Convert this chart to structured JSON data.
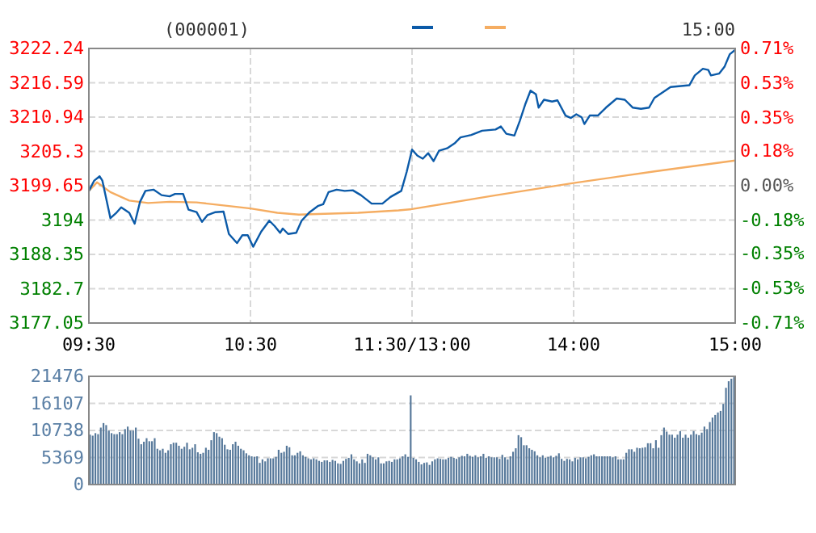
{
  "chart_data": [
    {
      "type": "line",
      "title": "(000001)",
      "annotations": [
        "15:00"
      ],
      "grid": true,
      "line_style": "solid",
      "categories": [
        "09:30",
        null,
        null,
        null,
        null,
        null,
        null,
        null,
        null,
        null,
        null,
        null,
        null,
        null,
        null,
        null,
        null,
        null,
        null,
        null,
        null,
        null,
        null,
        null,
        null,
        null,
        null,
        null,
        null,
        null,
        null,
        null,
        null,
        null,
        null,
        null,
        null,
        null,
        null,
        null,
        null,
        null,
        null,
        null,
        null,
        null,
        null,
        null,
        null,
        null,
        null,
        null,
        null,
        null,
        null,
        null,
        null,
        null,
        null,
        null,
        "10:30",
        null,
        null,
        null,
        null,
        null,
        null,
        null,
        null,
        null,
        null,
        null,
        null,
        null,
        null,
        null,
        null,
        null,
        null,
        null,
        null,
        null,
        null,
        null,
        null,
        null,
        null,
        null,
        null,
        null,
        null,
        null,
        null,
        null,
        null,
        null,
        null,
        null,
        null,
        null,
        null,
        null,
        null,
        null,
        null,
        null,
        null,
        null,
        null,
        null,
        null,
        null,
        null,
        null,
        null,
        null,
        null,
        null,
        null,
        null,
        "11:30/13:00",
        null,
        null,
        null,
        null,
        null,
        null,
        null,
        null,
        null,
        null,
        null,
        null,
        null,
        null,
        null,
        null,
        null,
        null,
        null,
        null,
        null,
        null,
        null,
        null,
        null,
        null,
        null,
        null,
        null,
        null,
        null,
        null,
        null,
        null,
        null,
        null,
        null,
        null,
        null,
        null,
        null,
        null,
        null,
        null,
        null,
        null,
        null,
        null,
        null,
        null,
        null,
        null,
        null,
        null,
        null,
        null,
        null,
        null,
        null,
        "14:00",
        null,
        null,
        null,
        null,
        null,
        null,
        null,
        null,
        null,
        null,
        null,
        null,
        null,
        null,
        null,
        null,
        null,
        null,
        null,
        null,
        null,
        null,
        null,
        null,
        null,
        null,
        null,
        null,
        null,
        null,
        null,
        null,
        null,
        null,
        null,
        null,
        null,
        null,
        null,
        null,
        null,
        null,
        null,
        null,
        null,
        null,
        null,
        null,
        null,
        null,
        null,
        null,
        null,
        null,
        null,
        null,
        null,
        null,
        null,
        "15:00"
      ],
      "ylim": [
        3177.05,
        3222.24
      ],
      "yticks": [
        3177.05,
        3182.7,
        3188.35,
        3194.0,
        3199.65,
        3205.3,
        3210.94,
        3216.59,
        3222.24
      ],
      "y2lim": [
        -0.71,
        0.71
      ],
      "y2ticks": [
        {
          "value": -0.71,
          "label": "-0.71%"
        },
        {
          "value": -0.53,
          "label": "-0.53%"
        },
        {
          "value": -0.35,
          "label": "-0.35%"
        },
        {
          "value": -0.18,
          "label": "-0.18%"
        },
        {
          "value": 0,
          "label": "0.00%"
        },
        {
          "value": 0.18,
          "label": "0.18%"
        },
        {
          "value": 0.35,
          "label": "0.35%"
        },
        {
          "value": 0.53,
          "label": "0.53%"
        },
        {
          "value": 0.71,
          "label": "0.71%"
        }
      ],
      "series": [
        {
          "color": "#0b5aa8",
          "values": [
            3198.8,
            null,
            3200.5,
            null,
            3201.2,
            3200.5,
            null,
            null,
            3194.3,
            null,
            3195.1,
            null,
            3196.1,
            null,
            null,
            3195.2,
            null,
            3193.4,
            null,
            3197.0,
            null,
            3198.8,
            null,
            null,
            3199.0,
            null,
            null,
            3198.1,
            null,
            null,
            3197.9,
            null,
            3198.3,
            null,
            null,
            3198.3,
            null,
            3195.7,
            null,
            null,
            3195.3,
            null,
            3193.7,
            null,
            3194.8,
            null,
            null,
            3195.3,
            null,
            null,
            3195.4,
            null,
            3191.7,
            null,
            null,
            3190.2,
            null,
            3191.5,
            null,
            3191.5,
            null,
            3189.6,
            null,
            null,
            3192.1,
            null,
            null,
            3193.9,
            null,
            3193.0,
            null,
            3191.9,
            3192.6,
            null,
            3191.7,
            null,
            null,
            3191.9,
            null,
            3193.9,
            null,
            null,
            3195.3,
            null,
            null,
            3196.3,
            null,
            3196.6,
            null,
            3198.6,
            null,
            null,
            3199.0,
            null,
            null,
            3198.8,
            null,
            null,
            3198.9,
            null,
            null,
            3198.1,
            null,
            null,
            null,
            3196.7,
            null,
            null,
            null,
            3196.7,
            null,
            null,
            3197.8,
            null,
            null,
            null,
            3198.8,
            null,
            3201.9,
            null,
            3205.6,
            null,
            3204.6,
            null,
            3204.1,
            null,
            3205.0,
            null,
            3203.7,
            null,
            3205.4,
            null,
            null,
            3205.8,
            null,
            null,
            3206.7,
            null,
            3207.6,
            null,
            null,
            null,
            3208.0,
            null,
            null,
            null,
            3208.7,
            null,
            null,
            null,
            null,
            3208.9,
            null,
            3209.4,
            null,
            3208.2,
            null,
            null,
            3207.9,
            null,
            3210.3,
            null,
            3213.0,
            null,
            3215.3,
            null,
            3214.7,
            3212.5,
            null,
            3213.8,
            null,
            null,
            3213.5,
            null,
            3213.7,
            null,
            null,
            3211.2,
            null,
            3210.8,
            null,
            3211.4,
            null,
            3210.9,
            3209.8,
            null,
            3211.2,
            null,
            null,
            3211.2,
            null,
            null,
            3212.5,
            null,
            null,
            null,
            3214.0,
            null,
            null,
            3213.8,
            null,
            null,
            3212.5,
            null,
            null,
            3212.3,
            null,
            null,
            3212.5,
            null,
            3214.1,
            null,
            null,
            3215.0,
            null,
            null,
            3215.9,
            null,
            null,
            null,
            null,
            null,
            null,
            3216.2,
            null,
            3217.8,
            null,
            null,
            3218.9,
            null,
            3218.7,
            3217.8,
            null,
            null,
            3218.1,
            null,
            3219.2,
            null,
            3221.3,
            null,
            3222.0
          ]
        },
        {
          "color": "#f5ad62",
          "values": [
            3198.8,
            null,
            null,
            3200.2,
            null,
            null,
            null,
            null,
            3198.6,
            null,
            null,
            null,
            null,
            null,
            null,
            3197.2,
            null,
            null,
            null,
            null,
            null,
            null,
            3196.8,
            null,
            null,
            null,
            null,
            null,
            null,
            null,
            3197.0,
            null,
            null,
            null,
            null,
            null,
            null,
            null,
            null,
            null,
            3196.9,
            null,
            null,
            null,
            null,
            null,
            null,
            null,
            null,
            null,
            3196.4,
            null,
            null,
            null,
            null,
            null,
            null,
            null,
            null,
            null,
            3195.9,
            null,
            null,
            null,
            null,
            null,
            null,
            null,
            null,
            null,
            3195.2,
            null,
            null,
            null,
            null,
            null,
            null,
            null,
            3194.9,
            null,
            null,
            null,
            null,
            null,
            null,
            3195.0,
            null,
            null,
            null,
            null,
            null,
            null,
            null,
            null,
            null,
            null,
            null,
            null,
            null,
            null,
            3195.2,
            null,
            null,
            null,
            null,
            null,
            null,
            null,
            null,
            null,
            null,
            null,
            null,
            null,
            null,
            3195.6,
            null,
            null,
            null,
            null,
            3195.8,
            null,
            null,
            null,
            null,
            null,
            null,
            null,
            null,
            null,
            null,
            null,
            null,
            null,
            null,
            null,
            null,
            null,
            null,
            null,
            null,
            null,
            null,
            null,
            null,
            null,
            null,
            null,
            null,
            null,
            3198.0,
            null,
            null,
            null,
            null,
            null,
            null,
            null,
            null,
            null,
            null,
            null,
            null,
            null,
            null,
            null,
            null,
            null,
            null,
            null,
            null,
            null,
            null,
            null,
            null,
            null,
            null,
            null,
            null,
            null,
            3200.1,
            null,
            null,
            null,
            null,
            null,
            null,
            null,
            null,
            null,
            null,
            null,
            null,
            null,
            null,
            null,
            null,
            null,
            null,
            null,
            null,
            null,
            null,
            null,
            null,
            null,
            null,
            null,
            null,
            null,
            3202.0,
            null,
            null,
            null,
            null,
            null,
            null,
            null,
            null,
            null,
            null,
            null,
            null,
            null,
            null,
            null,
            null,
            null,
            null,
            null,
            null,
            null,
            null,
            null,
            null,
            null,
            null,
            null,
            null,
            null,
            3203.8
          ]
        }
      ]
    },
    {
      "type": "bar",
      "grid": "y",
      "tick_labels": "y",
      "categories": [
        null,
        null,
        null,
        null,
        null,
        null,
        null,
        null,
        null,
        null,
        null,
        null,
        null,
        null,
        null,
        null,
        null,
        null,
        null,
        null,
        null,
        null,
        null,
        null,
        null,
        null,
        null,
        null,
        null,
        null,
        null,
        null,
        null,
        null,
        null,
        null,
        null,
        null,
        null,
        null,
        null,
        null,
        null,
        null,
        null,
        null,
        null,
        null,
        null,
        null,
        null,
        null,
        null,
        null,
        null,
        null,
        null,
        null,
        null,
        null,
        null,
        null,
        null,
        null,
        null,
        null,
        null,
        null,
        null,
        null,
        null,
        null,
        null,
        null,
        null,
        null,
        null,
        null,
        null,
        null,
        null,
        null,
        null,
        null,
        null,
        null,
        null,
        null,
        null,
        null,
        null,
        null,
        null,
        null,
        null,
        null,
        null,
        null,
        null,
        null,
        null,
        null,
        null,
        null,
        null,
        null,
        null,
        null,
        null,
        null,
        null,
        null,
        null,
        null,
        null,
        null,
        null,
        null,
        null,
        null,
        null,
        null,
        null,
        null,
        null,
        null,
        null,
        null,
        null,
        null,
        null,
        null,
        null,
        null,
        null,
        null,
        null,
        null,
        null,
        null,
        null,
        null,
        null,
        null,
        null,
        null,
        null,
        null,
        null,
        null,
        null,
        null,
        null,
        null,
        null,
        null,
        null,
        null,
        null,
        null,
        null,
        null,
        null,
        null,
        null,
        null,
        null,
        null,
        null,
        null,
        null,
        null,
        null,
        null,
        null,
        null,
        null,
        null,
        null,
        null,
        null,
        null,
        null,
        null,
        null,
        null,
        null,
        null,
        null,
        null,
        null,
        null,
        null,
        null,
        null,
        null,
        null,
        null,
        null,
        null,
        null,
        null,
        null,
        null,
        null,
        null,
        null,
        null,
        null,
        null,
        null,
        null,
        null,
        null,
        null,
        null,
        null,
        null,
        null,
        null,
        null,
        null,
        null,
        null,
        null,
        null,
        null,
        null,
        null,
        null,
        null,
        null,
        null,
        null,
        null,
        null,
        null,
        null,
        null,
        null
      ],
      "ylim": [
        0,
        21476
      ],
      "yticks": [
        0,
        5369,
        10738,
        16107,
        21476
      ],
      "series": [
        {
          "color": "#56789a",
          "values": [
            9900,
            9700,
            10200,
            10000,
            11300,
            12200,
            11800,
            10700,
            10200,
            10000,
            10000,
            10400,
            10000,
            11000,
            11500,
            10700,
            10700,
            11300,
            9100,
            8000,
            8500,
            9200,
            8600,
            8600,
            9200,
            7100,
            6800,
            7100,
            6300,
            6800,
            8000,
            8300,
            8300,
            7700,
            7100,
            7500,
            8300,
            7000,
            7300,
            8000,
            6400,
            6100,
            6300,
            7300,
            6900,
            8800,
            10400,
            10200,
            9500,
            9200,
            7900,
            7000,
            6900,
            8000,
            8500,
            7700,
            7100,
            6800,
            6200,
            5800,
            5600,
            5500,
            5600,
            4300,
            5000,
            4600,
            5200,
            5200,
            5200,
            5500,
            6900,
            6300,
            6500,
            7700,
            7400,
            5800,
            5800,
            6300,
            6600,
            5800,
            5500,
            5200,
            5000,
            5200,
            5000,
            4700,
            4500,
            4800,
            4800,
            4500,
            4900,
            4700,
            4200,
            4100,
            4700,
            5100,
            5300,
            6000,
            5000,
            4600,
            4200,
            5000,
            4300,
            6100,
            5800,
            5400,
            5000,
            5400,
            4200,
            4200,
            4600,
            4700,
            4500,
            5000,
            5000,
            5200,
            5600,
            6000,
            5500,
            17700,
            5300,
            5000,
            4500,
            4000,
            4300,
            4400,
            3900,
            4600,
            5000,
            5200,
            5100,
            5000,
            5000,
            5300,
            5500,
            5300,
            5100,
            5400,
            5700,
            5600,
            6100,
            5700,
            5500,
            5800,
            5400,
            5600,
            6100,
            5300,
            5600,
            5400,
            5400,
            5400,
            5100,
            5900,
            5400,
            5000,
            5600,
            6500,
            7200,
            9800,
            9400,
            7800,
            7800,
            7200,
            6900,
            6600,
            5800,
            5400,
            5800,
            5300,
            5500,
            5700,
            5400,
            5700,
            6200,
            5100,
            4700,
            5100,
            5000,
            4600,
            5300,
            5000,
            5400,
            5400,
            5200,
            5500,
            5800,
            6000,
            5600,
            5600,
            5600,
            5600,
            5600,
            5600,
            5400,
            5600,
            5000,
            5000,
            5000,
            6300,
            7000,
            7000,
            6500,
            7300,
            7200,
            7300,
            7400,
            8200,
            8200,
            7200,
            8800,
            7300,
            9800,
            11300,
            10500,
            9900,
            9900,
            9300,
            9900,
            10600,
            9300,
            9900,
            9300,
            9900,
            10600,
            10000,
            9800,
            10300,
            11500,
            11000,
            12400,
            13300,
            13800,
            14300,
            14600,
            16000,
            19200,
            20500,
            21000,
            21300
          ]
        }
      ]
    }
  ]
}
